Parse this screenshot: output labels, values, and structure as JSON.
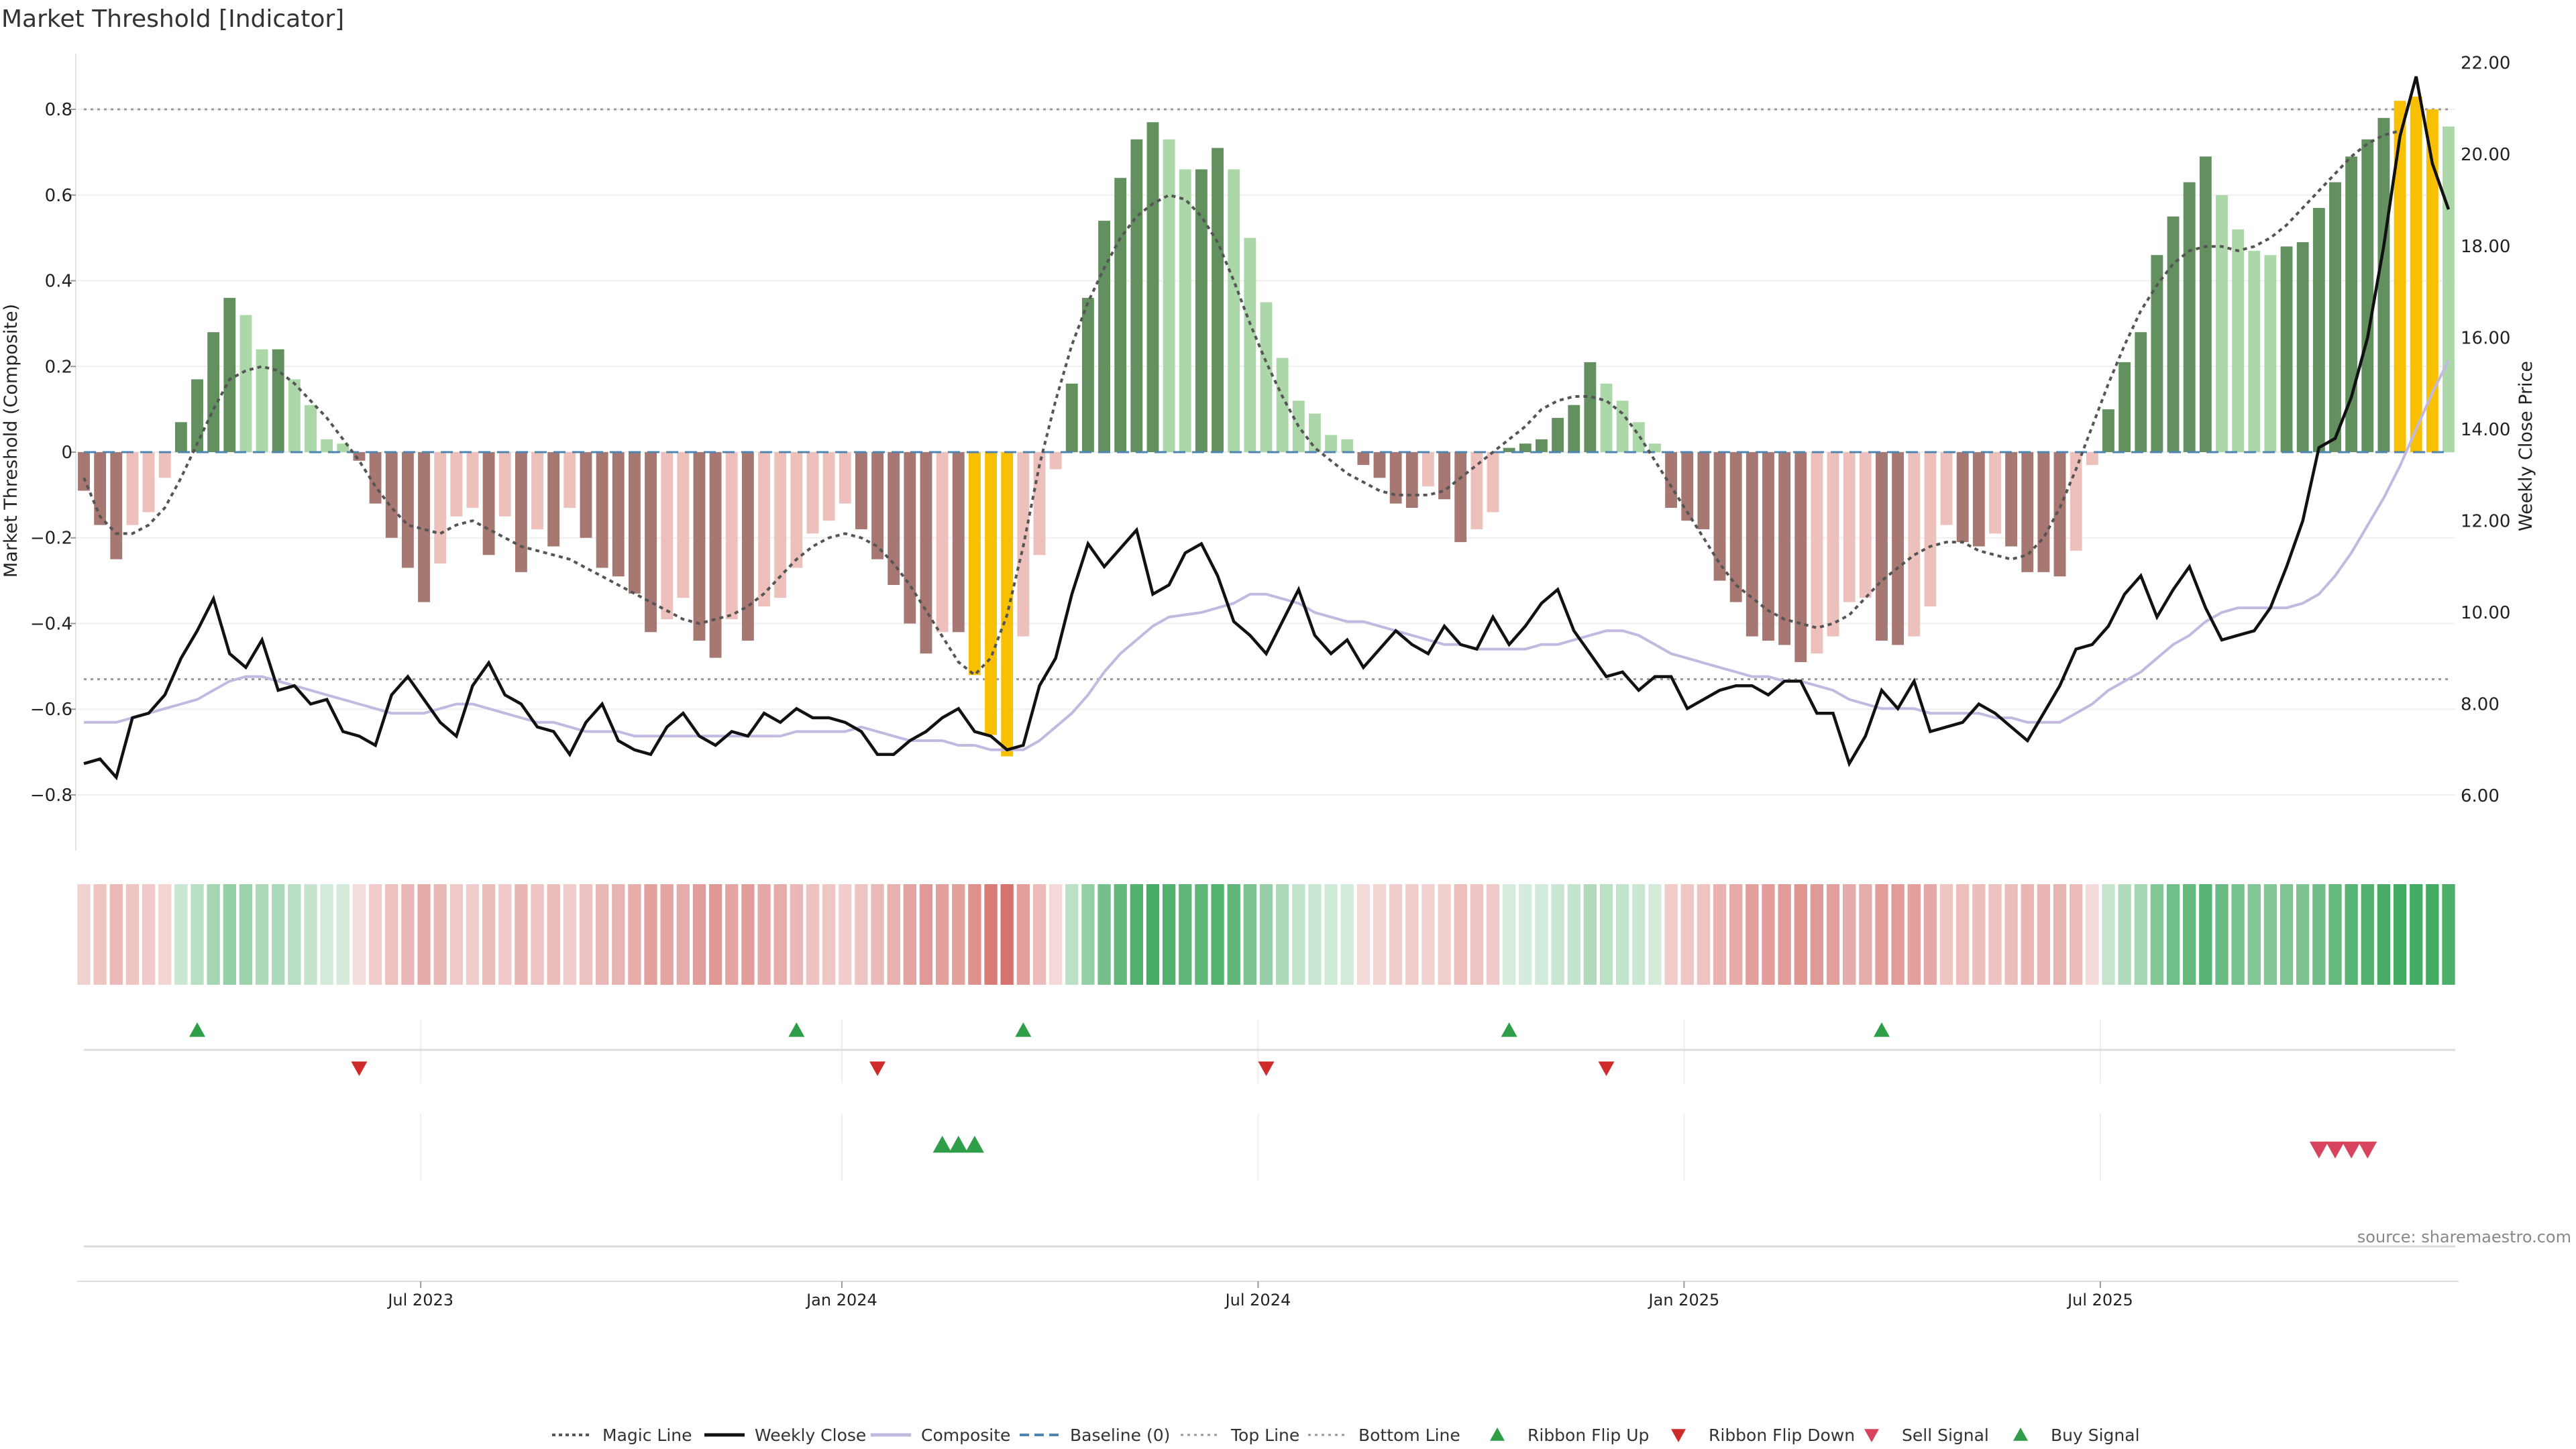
{
  "title": "Market Threshold [Indicator]",
  "source": "source: sharemaestro.com",
  "colors": {
    "bull_dark": "#63905f",
    "bull_light": "#acd8a9",
    "bear_dark": "#a77772",
    "bear_light": "#eec0bb",
    "extreme": "#f8c000",
    "magic": "#555555",
    "close": "#111111",
    "composite": "#c2b8e0",
    "baseline": "#4f86b0",
    "ref": "#9a9a9a",
    "flip_up": "#2e9e49",
    "flip_down": "#cf2b2b",
    "sell": "#d8435e",
    "buy": "#2e9e49"
  },
  "chart_data": {
    "type": "bar",
    "title": "Market Threshold [Indicator]",
    "ylabel": "Market Threshold (Composite)",
    "y2label": "Weekly Close Price",
    "ylim": [
      -0.93,
      0.93
    ],
    "y2lim": [
      4.8,
      22.2
    ],
    "yticks": [
      {
        "v": 0.8,
        "t": "0.8"
      },
      {
        "v": 0.6,
        "t": "0.6"
      },
      {
        "v": 0.4,
        "t": "0.4"
      },
      {
        "v": 0.2,
        "t": "0.2"
      },
      {
        "v": 0,
        "t": "0"
      },
      {
        "v": -0.2,
        "t": "−0.2"
      },
      {
        "v": -0.4,
        "t": "−0.4"
      },
      {
        "v": -0.6,
        "t": "−0.6"
      },
      {
        "v": -0.8,
        "t": "−0.8"
      }
    ],
    "y2ticks": [
      {
        "v": 22,
        "t": "22.00"
      },
      {
        "v": 20,
        "t": "20.00"
      },
      {
        "v": 18,
        "t": "18.00"
      },
      {
        "v": 16,
        "t": "16.00"
      },
      {
        "v": 14,
        "t": "14.00"
      },
      {
        "v": 12,
        "t": "12.00"
      },
      {
        "v": 10,
        "t": "10.00"
      },
      {
        "v": 8,
        "t": "8.00"
      },
      {
        "v": 6,
        "t": "6.00"
      }
    ],
    "xticks": [
      {
        "i": 20.8,
        "t": "Jul 2023"
      },
      {
        "i": 46.8,
        "t": "Jan 2024"
      },
      {
        "i": 72.5,
        "t": "Jul 2024"
      },
      {
        "i": 98.8,
        "t": "Jan 2025"
      },
      {
        "i": 124.5,
        "t": "Jul 2025"
      }
    ],
    "top_line": 0.8,
    "bottom_line": -0.53,
    "composite_values": [
      -0.09,
      -0.17,
      -0.25,
      -0.17,
      -0.14,
      -0.06,
      0.07,
      0.17,
      0.28,
      0.36,
      0.32,
      0.24,
      0.24,
      0.17,
      0.11,
      0.03,
      0.02,
      -0.02,
      -0.12,
      -0.2,
      -0.27,
      -0.35,
      -0.26,
      -0.15,
      -0.13,
      -0.24,
      -0.15,
      -0.28,
      -0.18,
      -0.22,
      -0.13,
      -0.2,
      -0.27,
      -0.29,
      -0.33,
      -0.42,
      -0.39,
      -0.34,
      -0.44,
      -0.48,
      -0.39,
      -0.44,
      -0.36,
      -0.34,
      -0.27,
      -0.19,
      -0.16,
      -0.12,
      -0.18,
      -0.25,
      -0.31,
      -0.4,
      -0.47,
      -0.42,
      -0.42,
      -0.52,
      -0.66,
      -0.71,
      -0.43,
      -0.24,
      -0.04,
      0.16,
      0.36,
      0.54,
      0.64,
      0.73,
      0.77,
      0.73,
      0.66,
      0.66,
      0.71,
      0.66,
      0.5,
      0.35,
      0.22,
      0.12,
      0.09,
      0.04,
      0.03,
      -0.03,
      -0.06,
      -0.12,
      -0.13,
      -0.08,
      -0.11,
      -0.21,
      -0.18,
      -0.14,
      0.01,
      0.02,
      0.03,
      0.08,
      0.11,
      0.21,
      0.16,
      0.12,
      0.07,
      0.02,
      -0.13,
      -0.16,
      -0.18,
      -0.3,
      -0.35,
      -0.43,
      -0.44,
      -0.45,
      -0.49,
      -0.47,
      -0.43,
      -0.35,
      -0.34,
      -0.44,
      -0.45,
      -0.43,
      -0.36,
      -0.17,
      -0.21,
      -0.22,
      -0.19,
      -0.22,
      -0.28,
      -0.28,
      -0.29,
      -0.23,
      -0.03,
      0.1,
      0.21,
      0.28,
      0.46,
      0.55,
      0.63,
      0.69,
      0.6,
      0.52,
      0.47,
      0.46,
      0.48,
      0.49,
      0.57,
      0.63,
      0.69,
      0.73,
      0.78,
      0.82,
      0.83,
      0.8,
      0.76
    ],
    "magic_line_values": [
      -0.06,
      -0.15,
      -0.19,
      -0.19,
      -0.17,
      -0.13,
      -0.06,
      0.02,
      0.1,
      0.17,
      0.19,
      0.2,
      0.19,
      0.16,
      0.12,
      0.08,
      0.03,
      -0.02,
      -0.08,
      -0.13,
      -0.17,
      -0.18,
      -0.19,
      -0.17,
      -0.16,
      -0.18,
      -0.2,
      -0.22,
      -0.23,
      -0.24,
      -0.25,
      -0.27,
      -0.29,
      -0.31,
      -0.33,
      -0.35,
      -0.37,
      -0.39,
      -0.4,
      -0.39,
      -0.38,
      -0.36,
      -0.33,
      -0.29,
      -0.25,
      -0.22,
      -0.2,
      -0.19,
      -0.2,
      -0.22,
      -0.26,
      -0.31,
      -0.37,
      -0.43,
      -0.49,
      -0.52,
      -0.48,
      -0.38,
      -0.22,
      -0.03,
      0.12,
      0.25,
      0.35,
      0.43,
      0.5,
      0.55,
      0.58,
      0.6,
      0.59,
      0.55,
      0.49,
      0.4,
      0.3,
      0.21,
      0.13,
      0.06,
      0.01,
      -0.02,
      -0.05,
      -0.07,
      -0.09,
      -0.1,
      -0.1,
      -0.1,
      -0.09,
      -0.06,
      -0.03,
      0.0,
      0.03,
      0.06,
      0.1,
      0.12,
      0.13,
      0.13,
      0.12,
      0.09,
      0.04,
      -0.02,
      -0.08,
      -0.14,
      -0.2,
      -0.26,
      -0.31,
      -0.34,
      -0.37,
      -0.39,
      -0.4,
      -0.41,
      -0.4,
      -0.38,
      -0.34,
      -0.3,
      -0.27,
      -0.24,
      -0.22,
      -0.21,
      -0.21,
      -0.23,
      -0.24,
      -0.25,
      -0.24,
      -0.2,
      -0.13,
      -0.04,
      0.06,
      0.16,
      0.25,
      0.33,
      0.39,
      0.44,
      0.47,
      0.48,
      0.48,
      0.47,
      0.48,
      0.5,
      0.53,
      0.57,
      0.61,
      0.65,
      0.69,
      0.72,
      0.74,
      0.75
    ],
    "weekly_close_values": [
      6.7,
      6.8,
      6.4,
      7.7,
      7.8,
      8.2,
      9.0,
      9.6,
      10.3,
      9.1,
      8.8,
      9.4,
      8.3,
      8.4,
      8.0,
      8.1,
      7.4,
      7.3,
      7.1,
      8.2,
      8.6,
      8.1,
      7.6,
      7.3,
      8.4,
      8.9,
      8.2,
      8.0,
      7.5,
      7.4,
      6.9,
      7.6,
      8.0,
      7.2,
      7.0,
      6.9,
      7.5,
      7.8,
      7.3,
      7.1,
      7.4,
      7.3,
      7.8,
      7.6,
      7.9,
      7.7,
      7.7,
      7.6,
      7.4,
      6.9,
      6.9,
      7.2,
      7.4,
      7.7,
      7.9,
      7.4,
      7.3,
      7.0,
      7.1,
      8.4,
      9.0,
      10.4,
      11.5,
      11.0,
      11.4,
      11.8,
      10.4,
      10.6,
      11.3,
      11.5,
      10.8,
      9.8,
      9.5,
      9.1,
      9.8,
      10.5,
      9.5,
      9.1,
      9.4,
      8.8,
      9.2,
      9.6,
      9.3,
      9.1,
      9.7,
      9.3,
      9.2,
      9.9,
      9.3,
      9.7,
      10.2,
      10.5,
      9.6,
      9.1,
      8.6,
      8.7,
      8.3,
      8.6,
      8.6,
      7.9,
      8.1,
      8.3,
      8.4,
      8.4,
      8.2,
      8.5,
      8.5,
      7.8,
      7.8,
      6.7,
      7.3,
      8.3,
      7.9,
      8.5,
      7.4,
      7.5,
      7.6,
      8.0,
      7.8,
      7.5,
      7.2,
      7.8,
      8.4,
      9.2,
      9.3,
      9.7,
      10.4,
      10.8,
      9.9,
      10.5,
      11.0,
      10.1,
      9.4,
      9.5,
      9.6,
      10.1,
      11.0,
      12.0,
      13.6,
      13.8,
      14.7,
      16.0,
      18.0,
      20.4,
      21.7,
      19.8,
      18.8
    ],
    "composite_line_values": [
      7.6,
      7.6,
      7.6,
      7.7,
      7.8,
      7.9,
      8.0,
      8.1,
      8.3,
      8.5,
      8.6,
      8.6,
      8.5,
      8.4,
      8.3,
      8.2,
      8.1,
      8.0,
      7.9,
      7.8,
      7.8,
      7.8,
      7.9,
      8.0,
      8.0,
      7.9,
      7.8,
      7.7,
      7.6,
      7.6,
      7.5,
      7.4,
      7.4,
      7.4,
      7.3,
      7.3,
      7.3,
      7.3,
      7.3,
      7.3,
      7.3,
      7.3,
      7.3,
      7.3,
      7.4,
      7.4,
      7.4,
      7.4,
      7.5,
      7.4,
      7.3,
      7.2,
      7.2,
      7.2,
      7.1,
      7.1,
      7.0,
      7.0,
      7.0,
      7.2,
      7.5,
      7.8,
      8.2,
      8.7,
      9.1,
      9.4,
      9.7,
      9.9,
      9.95,
      10.0,
      10.1,
      10.2,
      10.4,
      10.4,
      10.3,
      10.2,
      10.0,
      9.9,
      9.8,
      9.8,
      9.7,
      9.6,
      9.5,
      9.4,
      9.3,
      9.3,
      9.2,
      9.2,
      9.2,
      9.2,
      9.3,
      9.3,
      9.4,
      9.5,
      9.6,
      9.6,
      9.5,
      9.3,
      9.1,
      9.0,
      8.9,
      8.8,
      8.7,
      8.6,
      8.6,
      8.5,
      8.5,
      8.4,
      8.3,
      8.1,
      8.0,
      7.9,
      7.9,
      7.9,
      7.8,
      7.8,
      7.8,
      7.8,
      7.7,
      7.7,
      7.6,
      7.6,
      7.6,
      7.8,
      8.0,
      8.3,
      8.5,
      8.7,
      9.0,
      9.3,
      9.5,
      9.8,
      10.0,
      10.1,
      10.1,
      10.1,
      10.1,
      10.2,
      10.4,
      10.8,
      11.3,
      11.9,
      12.5,
      13.2,
      14.0,
      14.8,
      15.5
    ],
    "ribbon_up_idx": [
      7,
      44,
      58,
      88,
      111
    ],
    "ribbon_down_idx": [
      17,
      49,
      73,
      94
    ],
    "buy_idx": [
      53,
      54,
      55
    ],
    "sell_idx": [
      138,
      139,
      140,
      141
    ],
    "legend": [
      "Magic Line",
      "Weekly Close",
      "Composite",
      "Baseline (0)",
      "Top Line",
      "Bottom Line",
      "Ribbon Flip Up",
      "Ribbon Flip Down",
      "Sell Signal",
      "Buy Signal"
    ]
  }
}
